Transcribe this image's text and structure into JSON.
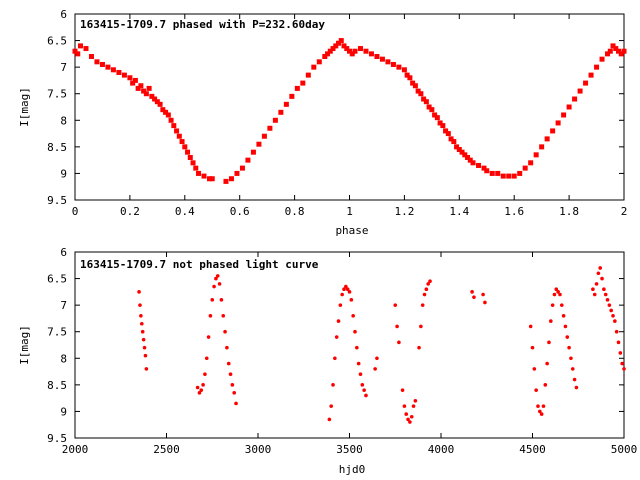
{
  "chart_data": [
    {
      "type": "scatter",
      "title": "163415-1709.7 phased with P=232.60day",
      "xlabel": "phase",
      "ylabel": "I[mag]",
      "xlim": [
        0,
        2
      ],
      "ylim": [
        9.5,
        6
      ],
      "y_inverted": true,
      "xticks": [
        "0",
        "0.2",
        "0.4",
        "0.6",
        "0.8",
        "1",
        "1.2",
        "1.4",
        "1.6",
        "1.8",
        "2"
      ],
      "yticks": [
        "6",
        "6.5",
        "7",
        "7.5",
        "8",
        "8.5",
        "9",
        "9.5"
      ],
      "marker": "filled-square",
      "color": "#ff0000",
      "series": [
        {
          "x": [
            0.0,
            0.01,
            0.02,
            0.04,
            0.06,
            0.08,
            0.1,
            0.12,
            0.14,
            0.16,
            0.18,
            0.2,
            0.21,
            0.22,
            0.23,
            0.24,
            0.25,
            0.26,
            0.27,
            0.28,
            0.29,
            0.3,
            0.31,
            0.32,
            0.33,
            0.34,
            0.35,
            0.36,
            0.37,
            0.38,
            0.39,
            0.4,
            0.41,
            0.42,
            0.43,
            0.44,
            0.45,
            0.47,
            0.49,
            0.5,
            0.55,
            0.57,
            0.59,
            0.61,
            0.63,
            0.65,
            0.67,
            0.69,
            0.71,
            0.73,
            0.75,
            0.77,
            0.79,
            0.81,
            0.83,
            0.85,
            0.87,
            0.89,
            0.91,
            0.92,
            0.93,
            0.94,
            0.95,
            0.96,
            0.97,
            0.98,
            0.99,
            1.0,
            1.01,
            1.02,
            1.04,
            1.06,
            1.08,
            1.1,
            1.12,
            1.14,
            1.16,
            1.18,
            1.2,
            1.21,
            1.22,
            1.23,
            1.24,
            1.25,
            1.26,
            1.27,
            1.28,
            1.29,
            1.3,
            1.31,
            1.32,
            1.33,
            1.34,
            1.35,
            1.36,
            1.37,
            1.38,
            1.39,
            1.4,
            1.41,
            1.42,
            1.43,
            1.44,
            1.45,
            1.47,
            1.49,
            1.5,
            1.52,
            1.54,
            1.56,
            1.58,
            1.6,
            1.62,
            1.64,
            1.66,
            1.68,
            1.7,
            1.72,
            1.74,
            1.76,
            1.78,
            1.8,
            1.82,
            1.84,
            1.86,
            1.88,
            1.9,
            1.92,
            1.94,
            1.95,
            1.96,
            1.97,
            1.98,
            1.99,
            2.0
          ],
          "y": [
            6.7,
            6.75,
            6.6,
            6.65,
            6.8,
            6.9,
            6.95,
            7.0,
            7.05,
            7.1,
            7.15,
            7.2,
            7.3,
            7.25,
            7.4,
            7.35,
            7.45,
            7.5,
            7.4,
            7.55,
            7.6,
            7.65,
            7.7,
            7.8,
            7.85,
            7.9,
            8.0,
            8.1,
            8.2,
            8.3,
            8.4,
            8.5,
            8.6,
            8.7,
            8.8,
            8.9,
            9.0,
            9.05,
            9.1,
            9.1,
            9.15,
            9.1,
            9.0,
            8.9,
            8.75,
            8.6,
            8.45,
            8.3,
            8.15,
            8.0,
            7.85,
            7.7,
            7.55,
            7.4,
            7.3,
            7.15,
            7.0,
            6.9,
            6.8,
            6.75,
            6.7,
            6.65,
            6.6,
            6.55,
            6.5,
            6.6,
            6.65,
            6.7,
            6.75,
            6.7,
            6.65,
            6.7,
            6.75,
            6.8,
            6.85,
            6.9,
            6.95,
            7.0,
            7.05,
            7.15,
            7.2,
            7.3,
            7.35,
            7.45,
            7.5,
            7.6,
            7.65,
            7.75,
            7.8,
            7.9,
            7.95,
            8.05,
            8.1,
            8.2,
            8.25,
            8.35,
            8.4,
            8.5,
            8.55,
            8.6,
            8.65,
            8.7,
            8.75,
            8.8,
            8.85,
            8.9,
            8.95,
            9.0,
            9.0,
            9.05,
            9.05,
            9.05,
            9.0,
            8.9,
            8.8,
            8.65,
            8.5,
            8.35,
            8.2,
            8.05,
            7.9,
            7.75,
            7.6,
            7.45,
            7.3,
            7.15,
            7.0,
            6.85,
            6.75,
            6.7,
            6.6,
            6.65,
            6.7,
            6.75,
            6.7
          ]
        }
      ]
    },
    {
      "type": "scatter",
      "title": "163415-1709.7 not phased light curve",
      "xlabel": "hjd0",
      "ylabel": "I[mag]",
      "xlim": [
        2000,
        5000
      ],
      "ylim": [
        9.5,
        6
      ],
      "y_inverted": true,
      "xticks": [
        "2000",
        "2500",
        "3000",
        "3500",
        "4000",
        "4500",
        "5000"
      ],
      "yticks": [
        "6",
        "6.5",
        "7",
        "7.5",
        "8",
        "8.5",
        "9",
        "9.5"
      ],
      "marker": "filled-circle",
      "color": "#ff0000",
      "series": [
        {
          "x": [
            2350,
            2355,
            2360,
            2365,
            2370,
            2375,
            2380,
            2385,
            2390,
            2670,
            2680,
            2690,
            2700,
            2710,
            2720,
            2730,
            2740,
            2750,
            2760,
            2770,
            2780,
            2790,
            2800,
            2810,
            2820,
            2830,
            2840,
            2850,
            2860,
            2870,
            2880,
            3390,
            3400,
            3410,
            3420,
            3430,
            3440,
            3450,
            3460,
            3470,
            3480,
            3490,
            3500,
            3510,
            3520,
            3530,
            3540,
            3550,
            3560,
            3570,
            3580,
            3590,
            3640,
            3650,
            3750,
            3760,
            3770,
            3790,
            3800,
            3810,
            3820,
            3830,
            3840,
            3850,
            3860,
            3880,
            3890,
            3900,
            3910,
            3920,
            3930,
            3940,
            4170,
            4180,
            4230,
            4240,
            4490,
            4500,
            4510,
            4520,
            4530,
            4540,
            4550,
            4560,
            4570,
            4580,
            4590,
            4600,
            4610,
            4620,
            4630,
            4640,
            4650,
            4660,
            4670,
            4680,
            4690,
            4700,
            4710,
            4720,
            4730,
            4740,
            4830,
            4840,
            4850,
            4860,
            4870,
            4880,
            4890,
            4900,
            4910,
            4920,
            4930,
            4940,
            4950,
            4960,
            4970,
            4980,
            4990,
            5000
          ],
          "y": [
            6.75,
            7.0,
            7.2,
            7.35,
            7.5,
            7.65,
            7.8,
            7.95,
            8.2,
            8.55,
            8.65,
            8.6,
            8.5,
            8.3,
            8.0,
            7.6,
            7.2,
            6.9,
            6.65,
            6.5,
            6.45,
            6.6,
            6.9,
            7.2,
            7.5,
            7.8,
            8.1,
            8.3,
            8.5,
            8.65,
            8.85,
            9.15,
            8.9,
            8.5,
            8.0,
            7.6,
            7.3,
            7.0,
            6.8,
            6.7,
            6.65,
            6.7,
            6.75,
            6.9,
            7.2,
            7.5,
            7.8,
            8.1,
            8.3,
            8.5,
            8.6,
            8.7,
            8.2,
            8.0,
            7.0,
            7.4,
            7.7,
            8.6,
            8.9,
            9.05,
            9.15,
            9.2,
            9.1,
            8.9,
            8.8,
            7.8,
            7.4,
            7.0,
            6.8,
            6.7,
            6.6,
            6.55,
            6.75,
            6.85,
            6.8,
            6.95,
            7.4,
            7.8,
            8.2,
            8.6,
            8.9,
            9.0,
            9.05,
            8.9,
            8.5,
            8.1,
            7.7,
            7.3,
            7.0,
            6.8,
            6.7,
            6.75,
            6.8,
            7.0,
            7.2,
            7.4,
            7.6,
            7.8,
            8.0,
            8.2,
            8.4,
            8.55,
            6.7,
            6.8,
            6.6,
            6.4,
            6.3,
            6.5,
            6.7,
            6.8,
            6.9,
            7.0,
            7.1,
            7.2,
            7.3,
            7.5,
            7.7,
            7.9,
            8.1,
            8.2
          ]
        }
      ]
    }
  ]
}
